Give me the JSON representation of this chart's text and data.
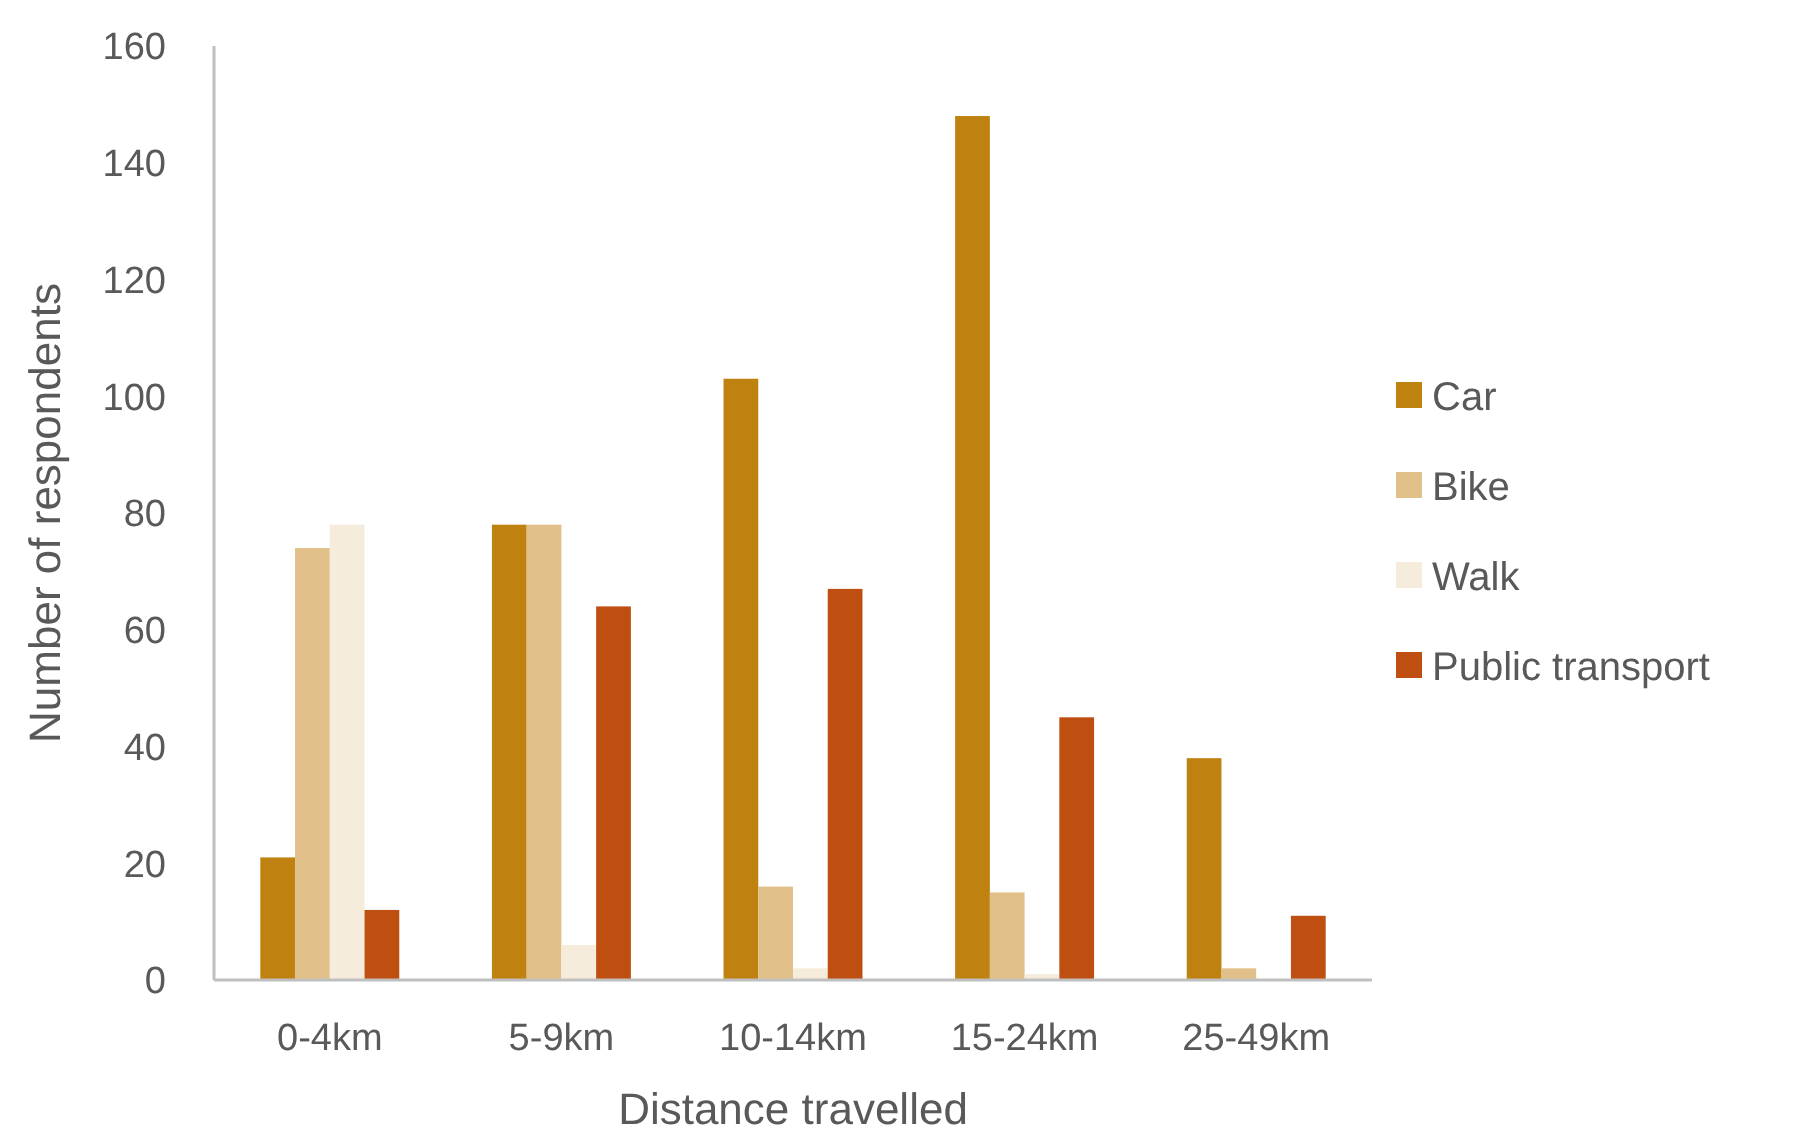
{
  "chart_data": {
    "type": "bar",
    "xlabel": "Distance travelled",
    "ylabel": "Number of respondents",
    "categories": [
      "0-4km",
      "5-9km",
      "10-14km",
      "15-24km",
      "25-49km"
    ],
    "series": [
      {
        "name": "Car",
        "color": "#bf8110",
        "values": [
          21,
          78,
          103,
          148,
          38
        ]
      },
      {
        "name": "Bike",
        "color": "#e0c088",
        "values": [
          74,
          78,
          16,
          15,
          2
        ]
      },
      {
        "name": "Walk",
        "color": "#f5ecdc",
        "values": [
          78,
          6,
          2,
          1,
          0
        ]
      },
      {
        "name": "Public transport",
        "color": "#bf4f10",
        "values": [
          12,
          64,
          67,
          45,
          11
        ]
      }
    ],
    "ylim": [
      0,
      160
    ],
    "yticks": [
      0,
      20,
      40,
      60,
      80,
      100,
      120,
      140,
      160
    ],
    "grid": false,
    "legend": "right"
  }
}
